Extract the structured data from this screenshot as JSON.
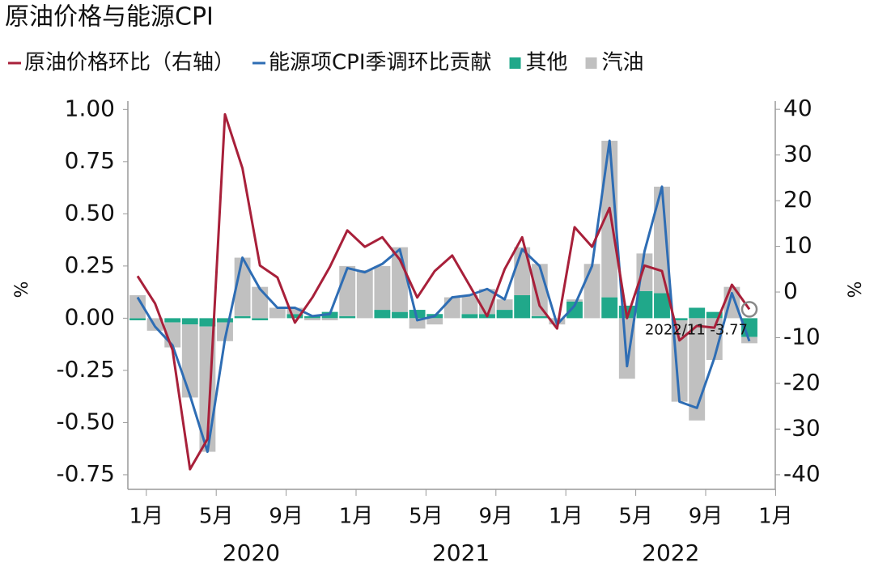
{
  "chart_data": {
    "type": "combo",
    "title": "原油价格与能源CPI",
    "y_label": "%",
    "y2_label": "%",
    "categories": [
      null,
      null,
      null,
      null,
      null,
      null,
      null,
      null,
      null,
      null,
      null,
      null,
      null,
      null,
      null,
      null,
      null,
      null,
      null,
      null,
      null,
      null,
      null,
      null,
      null,
      null,
      null,
      null,
      null,
      null,
      null,
      null,
      null,
      null,
      null,
      null
    ],
    "series": [
      {
        "name": "原油价格环比（右轴）",
        "type": "line",
        "axis": "y2",
        "color": "#a8203a",
        "values": [
          3.5,
          -2.5,
          -12.7,
          -38.8,
          -32.2,
          38.9,
          27.1,
          5.8,
          3.2,
          -6.7,
          -1.2,
          5.5,
          13.5,
          9.9,
          12,
          7.1,
          -1.2,
          4.6,
          8,
          1.4,
          -5.3,
          5,
          12,
          -3,
          -8,
          14.2,
          9.9,
          18.4,
          -5.7,
          5.8,
          4.6,
          -10.6,
          -7.4,
          -7.8,
          1.6,
          -3.77
        ]
      },
      {
        "name": "能源项CPI季调环比贡献",
        "type": "line",
        "color": "#2e6db4",
        "values": [
          0.1,
          -0.04,
          -0.13,
          -0.37,
          -0.64,
          -0.1,
          0.29,
          0.14,
          0.05,
          0.05,
          0.01,
          0.02,
          0.24,
          0.22,
          0.26,
          0.33,
          -0.01,
          0.01,
          0.1,
          0.11,
          0.14,
          0.09,
          0.33,
          0.25,
          -0.03,
          0.06,
          0.25,
          0.85,
          -0.23,
          0.32,
          0.63,
          -0.4,
          -0.43,
          -0.19,
          0.12,
          -0.11
        ]
      },
      {
        "name": "其他",
        "type": "bar",
        "color": "#20a88a",
        "values": [
          -0.01,
          0,
          -0.02,
          -0.03,
          -0.04,
          -0.02,
          0.01,
          -0.01,
          0,
          0.02,
          0.01,
          0.03,
          0.01,
          0,
          0.04,
          0.03,
          0.04,
          0.02,
          0,
          0.02,
          0.02,
          0.04,
          0.11,
          0.01,
          0,
          0.08,
          0,
          0.1,
          0.06,
          0.13,
          0.12,
          -0.01,
          0.05,
          0.03,
          0,
          -0.09
        ]
      },
      {
        "name": "汽油",
        "type": "bar",
        "color": "#c0c0c0",
        "values": [
          0.11,
          -0.06,
          -0.12,
          -0.35,
          -0.6,
          -0.09,
          0.28,
          0.15,
          0.05,
          0.03,
          -0.01,
          -0.01,
          0.24,
          0.23,
          0.21,
          0.31,
          -0.05,
          -0.03,
          0.1,
          0.09,
          0.12,
          0.05,
          0.23,
          0.25,
          -0.03,
          0.01,
          0.26,
          0.75,
          -0.29,
          0.18,
          0.51,
          -0.39,
          -0.49,
          -0.2,
          0.15,
          -0.03
        ]
      }
    ],
    "ylim": [
      -0.82,
      1.04
    ],
    "yticks": [
      {
        "value": 1,
        "label": "1.00"
      },
      0.75,
      {
        "value": 0.5,
        "label": "0.50"
      },
      0.25,
      {
        "value": 0,
        "label": "0.00"
      },
      -0.25,
      {
        "value": -0.5,
        "label": "-0.50"
      },
      -0.75
    ],
    "y2lim": [
      -43.2,
      41.8
    ],
    "y2ticks": [
      40,
      30,
      20,
      10,
      0,
      -10,
      -20,
      -30,
      -40
    ],
    "xticks": [
      {
        "value": 0.5,
        "label": "1月"
      },
      {
        "value": 4.5,
        "label": "5月"
      },
      {
        "value": 8.5,
        "label": "9月"
      },
      {
        "value": 12.5,
        "label": "1月"
      },
      {
        "value": 16.5,
        "label": "5月"
      },
      {
        "value": 20.5,
        "label": "9月"
      },
      {
        "value": 24.5,
        "label": "1月"
      },
      {
        "value": 28.5,
        "label": "5月"
      },
      {
        "value": 32.5,
        "label": "9月"
      },
      {
        "value": 36.5,
        "label": "1月"
      }
    ],
    "year_labels": [
      "2020",
      "2021",
      "2022"
    ],
    "annotation": "2022/11 -3.77",
    "grid": false
  }
}
